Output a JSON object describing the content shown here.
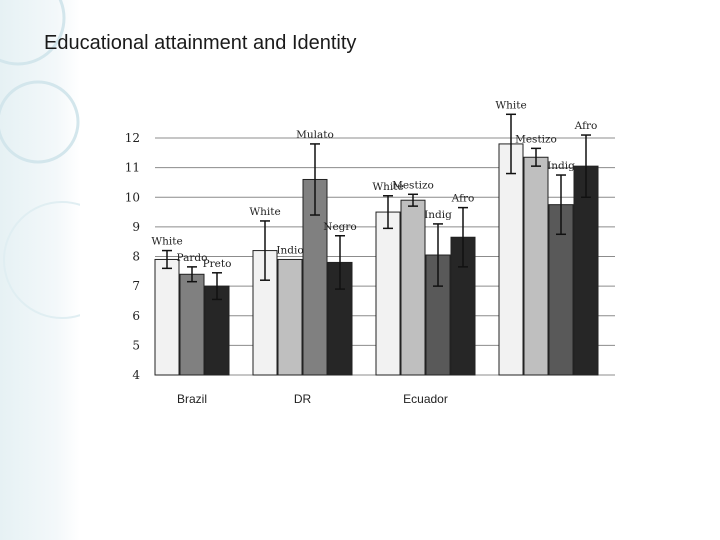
{
  "slide": {
    "title": "Educational attainment and Identity"
  },
  "chart_data": {
    "type": "bar",
    "ylim": [
      4,
      12
    ],
    "yticks": [
      "4",
      "5",
      "6",
      "7",
      "8",
      "9",
      "10",
      "11",
      "12"
    ],
    "grid": true,
    "groups": [
      {
        "category": "Brazil",
        "bars": [
          {
            "label": "White",
            "value": 7.9,
            "err": 0.3,
            "fill": "#f2f2f2"
          },
          {
            "label": "Pardo",
            "value": 7.4,
            "err": 0.25,
            "fill": "#808080"
          },
          {
            "label": "Preto",
            "value": 7.0,
            "err": 0.45,
            "fill": "#262626"
          }
        ]
      },
      {
        "category": "DR",
        "bars": [
          {
            "label": "White",
            "value": 8.2,
            "err": 1.0,
            "fill": "#f2f2f2"
          },
          {
            "label": "Indio",
            "value": 7.9,
            "err": 0.0,
            "fill": "#bfbfbf"
          },
          {
            "label": "Mulato",
            "value": 10.6,
            "err": 1.2,
            "fill": "#808080"
          },
          {
            "label": "Negro",
            "value": 7.8,
            "err": 0.9,
            "fill": "#262626"
          }
        ]
      },
      {
        "category": "Ecuador",
        "bars": [
          {
            "label": "White",
            "value": 9.5,
            "err": 0.55,
            "fill": "#f2f2f2"
          },
          {
            "label": "Mestizo",
            "value": 9.9,
            "err": 0.2,
            "fill": "#bfbfbf"
          },
          {
            "label": "Indig",
            "value": 8.05,
            "err": 1.05,
            "fill": "#595959"
          },
          {
            "label": "Afro",
            "value": 8.65,
            "err": 1.0,
            "fill": "#262626"
          }
        ]
      },
      {
        "category": "",
        "bars": [
          {
            "label": "White",
            "value": 11.8,
            "err": 1.0,
            "fill": "#f2f2f2"
          },
          {
            "label": "Mestizo",
            "value": 11.35,
            "err": 0.3,
            "fill": "#bfbfbf"
          },
          {
            "label": "Indig",
            "value": 9.75,
            "err": 1.0,
            "fill": "#595959"
          },
          {
            "label": "Afro",
            "value": 11.05,
            "err": 1.05,
            "fill": "#262626"
          }
        ]
      }
    ]
  }
}
